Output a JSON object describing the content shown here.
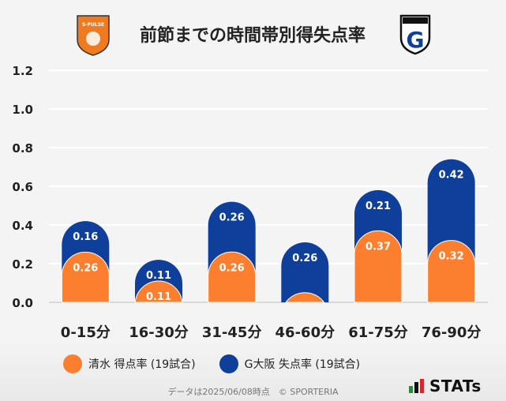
{
  "chart_data": {
    "type": "bar",
    "title": "前節までの時間帯別得失点率",
    "categories": [
      "0-15分",
      "16-30分",
      "31-45分",
      "46-60分",
      "61-75分",
      "76-90分"
    ],
    "series": [
      {
        "name": "清水 得点率 (19試合)",
        "values": [
          0.26,
          0.11,
          0.26,
          0.05,
          0.37,
          0.32
        ],
        "labels": [
          "0.26",
          "0.11",
          "0.26",
          "",
          "0.37",
          "0.32"
        ],
        "color": "#fb7f2f"
      },
      {
        "name": "G大阪 失点率 (19試合)",
        "values": [
          0.16,
          0.11,
          0.26,
          0.26,
          0.21,
          0.42
        ],
        "labels": [
          "0.16",
          "0.11",
          "0.26",
          "0.26",
          "0.21",
          "0.42"
        ],
        "color": "#0d3f9b"
      }
    ],
    "stacked": true,
    "yticks": [
      "0.0",
      "0.2",
      "0.4",
      "0.6",
      "0.8",
      "1.0",
      "1.2"
    ],
    "ylim": [
      0,
      1.2
    ],
    "grid": true,
    "legend_position": "bottom"
  },
  "logos": {
    "left": {
      "name": "shield-logo",
      "text": "S-PULSE",
      "color": "#f07a1f"
    },
    "right": {
      "name": "g-logo",
      "text": "G",
      "color": "#0d3f9b"
    }
  },
  "footnote": "データは2025/06/08時点　© SPORTERIA",
  "brand": {
    "text": "STATs"
  }
}
